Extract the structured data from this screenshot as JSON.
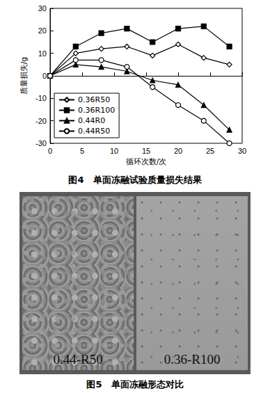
{
  "chart_data": {
    "type": "line",
    "x_label": "循环次数/次",
    "y_label": "质量损失/g",
    "x": [
      0,
      4,
      8,
      12,
      16,
      20,
      24,
      28
    ],
    "series": [
      {
        "name": "0.36R50",
        "color": "#000000",
        "marker": "diamond_open",
        "values": [
          0,
          10,
          12,
          13,
          9,
          14,
          8,
          5
        ]
      },
      {
        "name": "0.36R100",
        "color": "#000000",
        "marker": "square",
        "values": [
          0,
          13,
          19,
          21,
          15,
          21,
          22,
          13
        ]
      },
      {
        "name": "0.44R0",
        "color": "#000000",
        "marker": "triangle",
        "values": [
          0,
          5,
          4,
          2,
          -2,
          -4,
          -13,
          -24
        ]
      },
      {
        "name": "0.44R50",
        "color": "#000000",
        "marker": "circle_open",
        "values": [
          0,
          7,
          7,
          4,
          -5,
          -13,
          -20,
          -30
        ]
      }
    ],
    "xlim": [
      0,
      30
    ],
    "xticks": [
      0,
      5,
      10,
      15,
      20,
      25,
      30
    ],
    "ylim": [
      -30,
      30
    ],
    "yticks": [
      -30,
      -20,
      -10,
      0,
      10,
      20,
      30
    ],
    "grid": false,
    "legend": "lower left"
  },
  "figure_captions": [
    "图4　单面冻融试验质量损失结果",
    "图5　单面冻融形态对比"
  ],
  "photo_labels": [
    "0.44-R50",
    "0.36-R100"
  ]
}
